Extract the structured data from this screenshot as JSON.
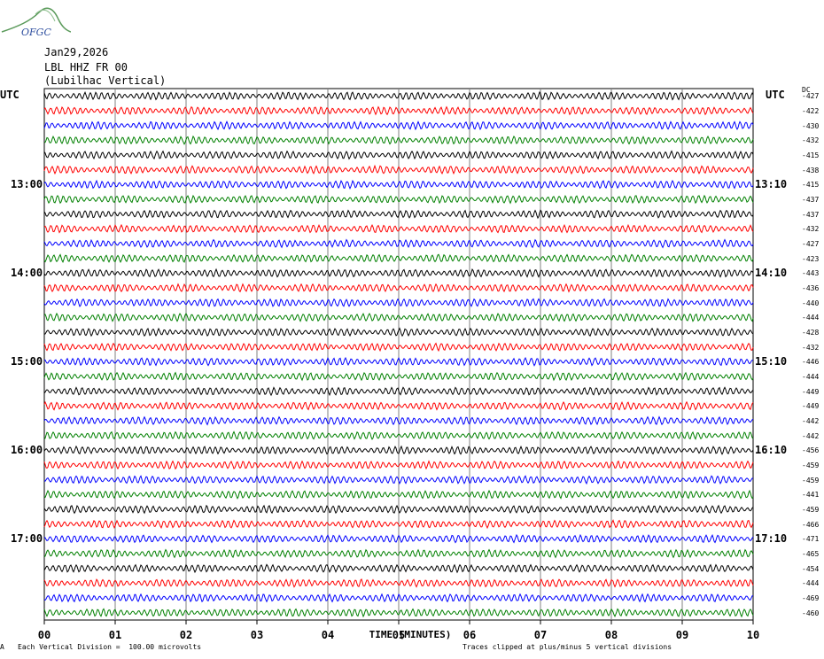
{
  "header": {
    "logo_text": "OFGC",
    "date": "Jan29,2026",
    "station": "LBL HHZ FR 00",
    "location": "(Lubilhac Vertical)"
  },
  "utc_left": "UTC",
  "utc_right": "UTC",
  "dc_label": "DC",
  "left_time_labels": [
    "13:00",
    "14:00",
    "15:00",
    "16:00",
    "17:00"
  ],
  "right_time_labels": [
    "13:10",
    "14:10",
    "15:10",
    "16:10",
    "17:10"
  ],
  "footer": {
    "mark": "A",
    "scale": "Each Vertical Division =  100.00 microvolts",
    "clip": "Traces clipped at plus/minus 5 vertical divisions"
  },
  "colors": {
    "black": "#000000",
    "red": "#ff0000",
    "blue": "#0000ff",
    "green": "#008000",
    "grid": "#808080"
  },
  "chart_data": {
    "type": "line",
    "xlabel": "TIME (MINUTES)",
    "x_ticks": [
      "00",
      "01",
      "02",
      "03",
      "04",
      "05",
      "06",
      "07",
      "08",
      "09",
      "10"
    ],
    "xlim": [
      0,
      10
    ],
    "trace_color_cycle": [
      "black",
      "red",
      "blue",
      "green"
    ],
    "dc_offsets": [
      -427,
      -422,
      -430,
      -432,
      -415,
      -438,
      -415,
      -437,
      -437,
      -432,
      -427,
      -423,
      -443,
      -436,
      -440,
      -444,
      -428,
      -432,
      -446,
      -444,
      -449,
      -449,
      -442,
      -442,
      -456,
      -459,
      -459,
      -441,
      -459,
      -466,
      -471,
      -465,
      -454,
      -444,
      -469,
      -460
    ]
  }
}
